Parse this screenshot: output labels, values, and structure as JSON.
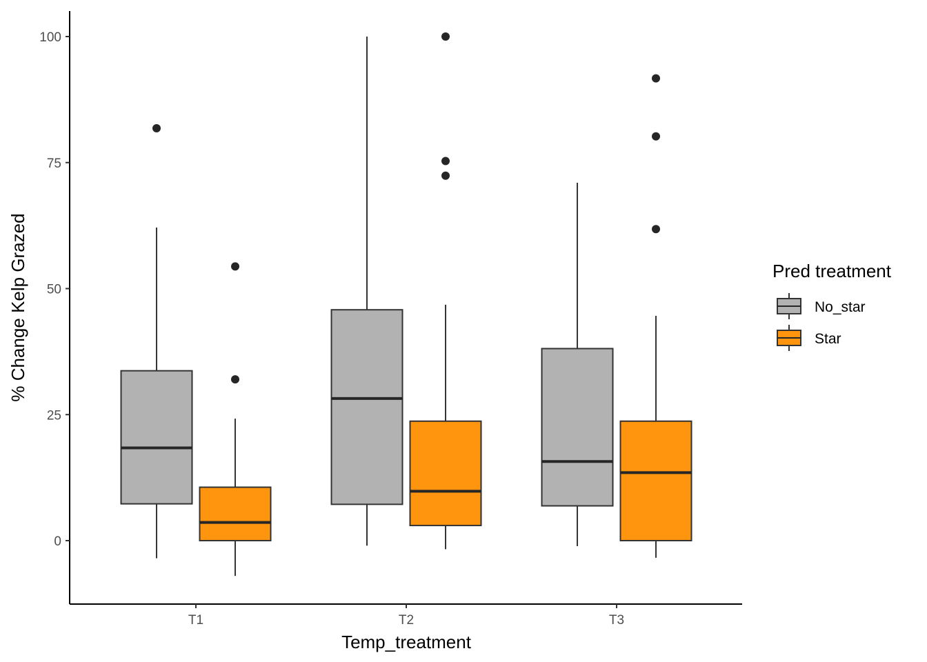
{
  "chart_data": {
    "type": "boxplot",
    "xlabel": "Temp_treatment",
    "ylabel": "% Change Kelp Grazed",
    "categories": [
      "T1",
      "T2",
      "T3"
    ],
    "yticks": [
      "0",
      "25",
      "50",
      "75",
      "100"
    ],
    "ylim": [
      -12.5,
      105
    ],
    "grid": false,
    "legend": {
      "title": "Pred treatment",
      "position": "right",
      "entries": [
        "No_star",
        "Star"
      ]
    },
    "series": [
      {
        "name": "No_star",
        "color": "#b2b2b2",
        "boxes": [
          {
            "category": "T1",
            "whisker_low": -3.5,
            "q1": 7.3,
            "median": 18.4,
            "q3": 33.7,
            "whisker_high": 62.1,
            "outliers": [
              81.8
            ]
          },
          {
            "category": "T2",
            "whisker_low": -1,
            "q1": 7.2,
            "median": 28.2,
            "q3": 45.8,
            "whisker_high": 100,
            "outliers": []
          },
          {
            "category": "T3",
            "whisker_low": -1.1,
            "q1": 6.9,
            "median": 15.7,
            "q3": 38.1,
            "whisker_high": 71.0,
            "outliers": []
          }
        ]
      },
      {
        "name": "Star",
        "color": "#ff950e",
        "boxes": [
          {
            "category": "T1",
            "whisker_low": -7.0,
            "q1": 0,
            "median": 3.6,
            "q3": 10.6,
            "whisker_high": 24.2,
            "outliers": [
              32.0,
              54.4
            ]
          },
          {
            "category": "T2",
            "whisker_low": -1.7,
            "q1": 3.0,
            "median": 9.8,
            "q3": 23.7,
            "whisker_high": 46.8,
            "outliers": [
              72.4,
              75.3,
              100
            ]
          },
          {
            "category": "T3",
            "whisker_low": -3.4,
            "q1": 0,
            "median": 13.5,
            "q3": 23.7,
            "whisker_high": 44.6,
            "outliers": [
              61.8,
              80.2,
              91.7
            ]
          }
        ]
      }
    ]
  }
}
